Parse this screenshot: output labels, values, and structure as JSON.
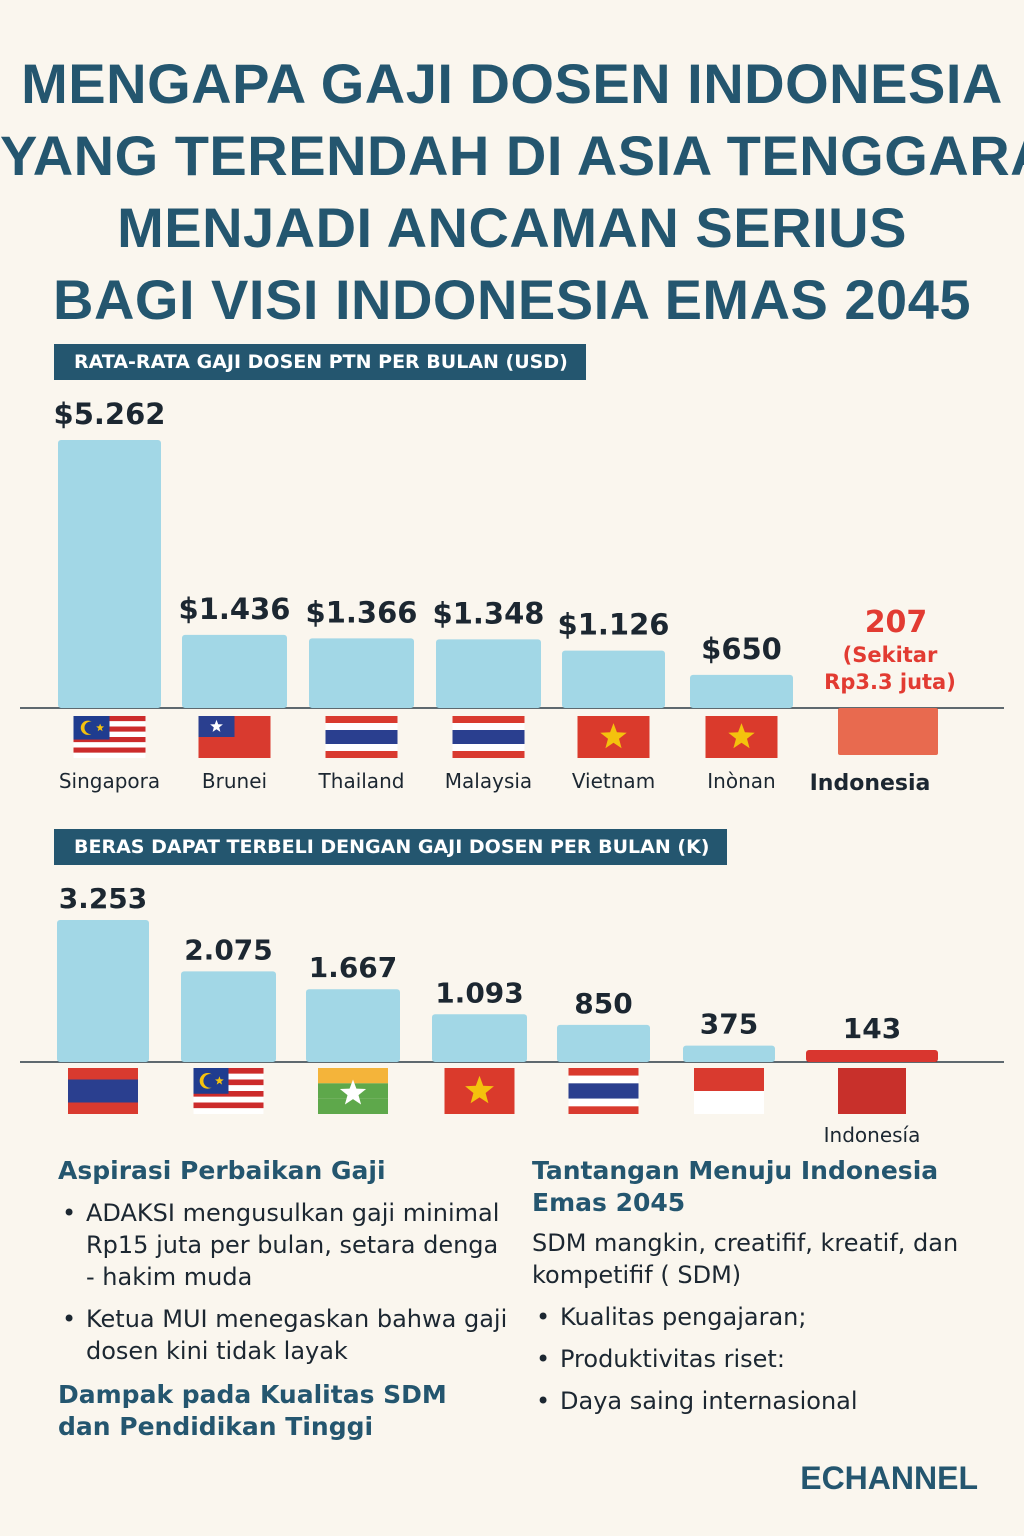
{
  "title_lines": [
    "MENGAPA GAJI DOSEN INDONESIA",
    "YANG TERENDAH DI ASIA TENGGARA",
    "MENJADI ANCAMAN SERIUS",
    "BAGI VISI INDONESIA EMAS 2045"
  ],
  "chart_data": [
    {
      "type": "bar",
      "title": "RATA-RATA GAJI DOSEN PTN PER BULAN (USD)",
      "categories": [
        "Singapora",
        "Brunei",
        "Thailand",
        "Malaysia",
        "Vietnam",
        "Inònan",
        "Indonesia"
      ],
      "values": [
        5262,
        1436,
        1366,
        1348,
        1126,
        650,
        207
      ],
      "value_labels": [
        "$5.262",
        "$1.436",
        "$1.366",
        "$1.348",
        "$1.126",
        "$650",
        "207"
      ],
      "highlight_index": 6,
      "highlight_note": [
        "(Sekitar",
        "Rp3.3 juta)"
      ],
      "flags": [
        "malaysia-flag",
        "taiwan-flag",
        "thailand-flag",
        "thailand-flag",
        "vietnam-flag",
        "vietnam-flag",
        "plain-orange-flag"
      ],
      "colors": {
        "bar": "#a2d7e6",
        "highlight": "#e86a4f",
        "highlight_text": "#e23b32"
      }
    },
    {
      "type": "bar",
      "title": "BERAS DAPAT TERBELI DENGAN GAJI DOSEN PER BULAN (K)",
      "categories": [
        "",
        "",
        "",
        "",
        "",
        "",
        "Indonesía"
      ],
      "values": [
        3253,
        2075,
        1667,
        1093,
        850,
        375,
        143
      ],
      "value_labels": [
        "3.253",
        "2.075",
        "1.667",
        "1.093",
        "850",
        "375",
        "143"
      ],
      "highlight_index": 6,
      "flags": [
        "laos-flag",
        "malaysia-flag",
        "myanmar-flag",
        "vietnam-flag",
        "thailand-flag",
        "indonesia-flag",
        "plain-red-flag"
      ],
      "colors": {
        "bar": "#a2d7e6",
        "highlight": "#d9362f"
      }
    }
  ],
  "left": {
    "heading": "Aspirasi Perbaikan Gaji",
    "bullets": [
      "ADAKSI mengusulkan gaji minimal Rp15 juta per bulan, setara denga - hakim muda",
      "Ketua MUI menegaskan bahwa gaji dosen kini tidak layak"
    ],
    "heading2": "Dampak pada Kualitas SDM dan Pendidikan Tinggi"
  },
  "right": {
    "heading": "Tantangan Menuju Indonesia Emas 2045",
    "intro": "SDM mangkin, creatifif, kreatif, dan kompetifif ( SDM)",
    "bullets": [
      "Kualitas pengajaran;",
      "Produktivitas riset:",
      "Daya saing internasional"
    ]
  },
  "brand": "ECHANNEL"
}
